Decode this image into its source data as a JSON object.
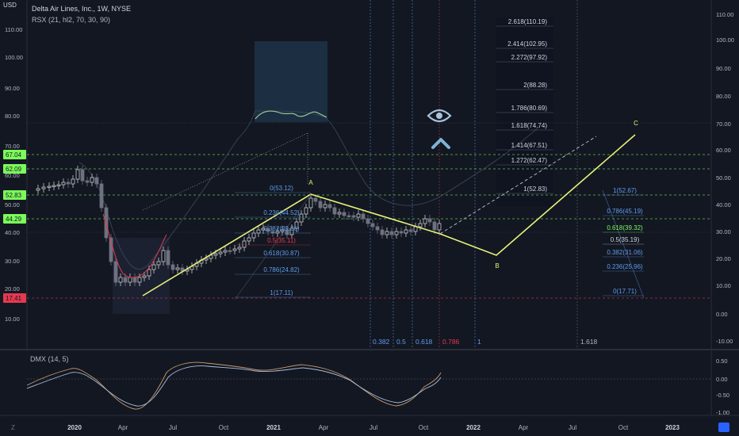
{
  "header": {
    "symbol": "Delta Air Lines, Inc., 1W, NYSE",
    "indicator": "RSX (21, hl2, 70, 30, 90)",
    "currency": "USD"
  },
  "left_axis": {
    "labels": [
      "110.00",
      "100.00",
      "90.00",
      "80.00",
      "70.00",
      "60.00",
      "50.00",
      "40.00",
      "30.00",
      "20.00",
      "10.00"
    ],
    "badges": [
      {
        "text": "67.04",
        "color": "#7cfc5a"
      },
      {
        "text": "62.09",
        "color": "#7cfc5a"
      },
      {
        "text": "52.83",
        "color": "#7cfc5a"
      },
      {
        "text": "44.29",
        "color": "#7cfc5a"
      },
      {
        "text": "17.41",
        "color": "#e53950"
      }
    ]
  },
  "right_axis": {
    "labels": [
      "110.00",
      "100.00",
      "90.00",
      "80.00",
      "70.00",
      "60.00",
      "50.00",
      "40.00",
      "30.00",
      "20.00",
      "10.00",
      "0.00",
      "-10.00"
    ],
    "dmx_labels": [
      "0.50",
      "0.00",
      "-0.50",
      "-1.00"
    ]
  },
  "fib_extension": [
    {
      "text": "2.618(110.19)"
    },
    {
      "text": "2.414(102.95)"
    },
    {
      "text": "2.272(97.92)"
    },
    {
      "text": "2(88.28)"
    },
    {
      "text": "1.786(80.69)"
    },
    {
      "text": "1.618(74.74)"
    },
    {
      "text": "1.414(67.51)"
    },
    {
      "text": "1.272(62.47)"
    },
    {
      "text": "1(52.83)"
    }
  ],
  "fib_retracement": [
    {
      "text": "0(53.12)",
      "color": "#5d9cec"
    },
    {
      "text": "0.236(44.52)",
      "color": "#5d9cec"
    },
    {
      "text": "0.382(39.36)",
      "color": "#5d9cec"
    },
    {
      "text": "0.5(35.11)",
      "color": "#e53950"
    },
    {
      "text": "0.618(30.87)",
      "color": "#5d9cec"
    },
    {
      "text": "0.786(24.82)",
      "color": "#5d9cec"
    },
    {
      "text": "1(17.11)",
      "color": "#5d9cec"
    }
  ],
  "fib_projection": [
    {
      "text": "1(52.67)",
      "color": "#5d9cec"
    },
    {
      "text": "0.786(45.19)",
      "color": "#5d9cec"
    },
    {
      "text": "0.618(39.32)",
      "color": "#7cfc5a"
    },
    {
      "text": "0.5(35.19)",
      "color": "#d1d4dc"
    },
    {
      "text": "0.382(31.06)",
      "color": "#5d9cec"
    },
    {
      "text": "0.236(25.96)",
      "color": "#5d9cec"
    },
    {
      "text": "0(17.71)",
      "color": "#5d9cec"
    }
  ],
  "fib_time": [
    {
      "text": "0.382",
      "color": "#5d9cec"
    },
    {
      "text": "0.5",
      "color": "#5d9cec"
    },
    {
      "text": "0.618",
      "color": "#5d9cec"
    },
    {
      "text": "0.786",
      "color": "#e53950"
    },
    {
      "text": "1",
      "color": "#5d9cec"
    },
    {
      "text": "1.618",
      "color": "#b2b5be"
    }
  ],
  "wave_labels": [
    "A",
    "B",
    "C"
  ],
  "dmx": {
    "label": "DMX (14, 5)"
  },
  "time_axis": [
    "2020",
    "Apr",
    "Jul",
    "Oct",
    "2021",
    "Apr",
    "Jul",
    "Oct",
    "2022",
    "Apr",
    "Jul",
    "Oct",
    "2023"
  ],
  "colors": {
    "background": "#131722",
    "up": "#c8c8c8",
    "down": "#6e7180",
    "zigzag": "#e8f27a",
    "level_green": "#7cfc5a",
    "level_red": "#e53950",
    "fib_blue": "#5d9cec"
  }
}
